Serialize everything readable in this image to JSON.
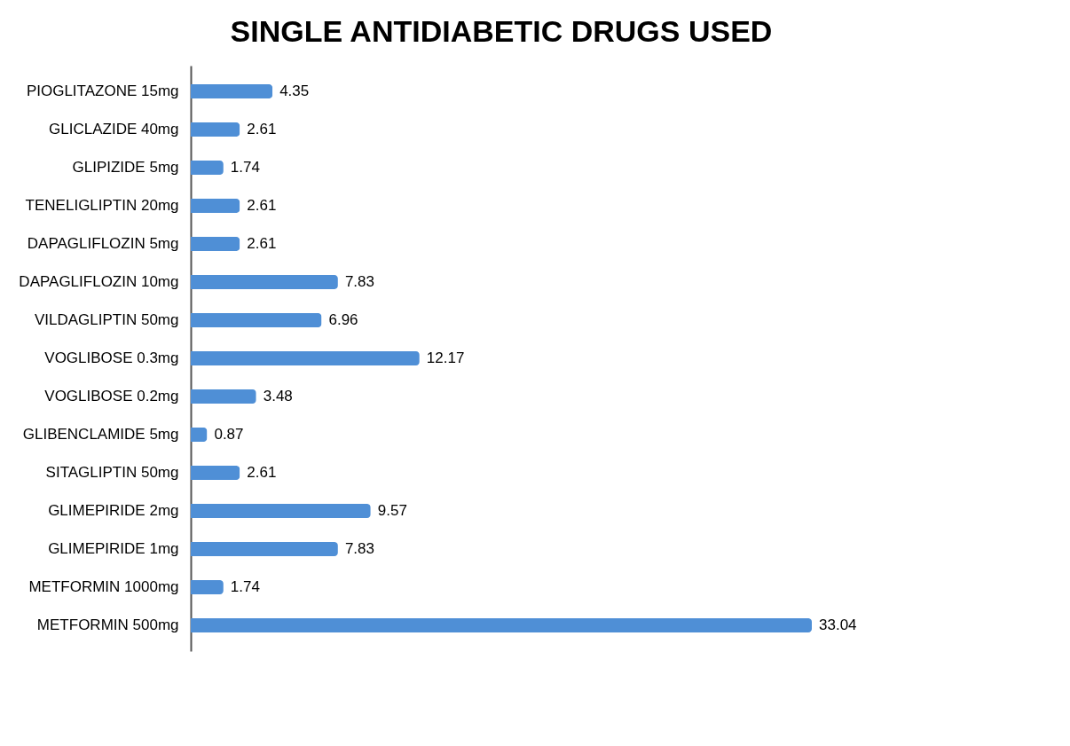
{
  "chart_data": {
    "type": "bar",
    "orientation": "horizontal",
    "title": "SINGLE ANTIDIABETIC DRUGS USED",
    "categories": [
      "PIOGLITAZONE 15mg",
      "GLICLAZIDE 40mg",
      "GLIPIZIDE 5mg",
      "TENELIGLIPTIN 20mg",
      "DAPAGLIFLOZIN 5mg",
      "DAPAGLIFLOZIN 10mg",
      "VILDAGLIPTIN 50mg",
      "VOGLIBOSE 0.3mg",
      "VOGLIBOSE 0.2mg",
      "GLIBENCLAMIDE 5mg",
      "SITAGLIPTIN 50mg",
      "GLIMEPIRIDE 2mg",
      "GLIMEPIRIDE 1mg",
      "METFORMIN 1000mg",
      "METFORMIN 500mg"
    ],
    "values": [
      4.35,
      2.61,
      1.74,
      2.61,
      2.61,
      7.83,
      6.96,
      12.17,
      3.48,
      0.87,
      2.61,
      9.57,
      7.83,
      1.74,
      33.04
    ],
    "color": "#4f8fd6",
    "data_labels": true
  }
}
